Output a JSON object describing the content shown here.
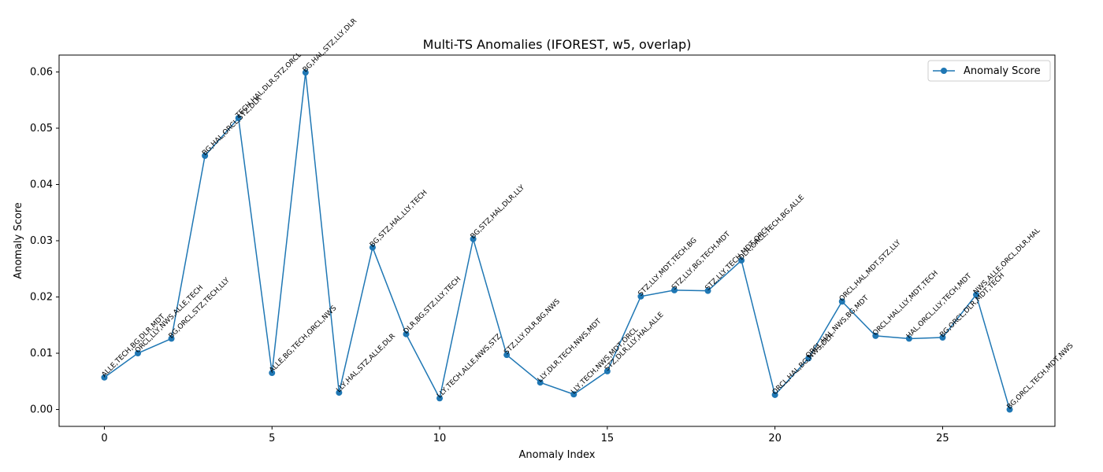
{
  "chart_data": {
    "type": "line",
    "title": "Multi-TS Anomalies (IFOREST, w5, overlap)",
    "xlabel": "Anomaly Index",
    "ylabel": "Anomaly Score",
    "xlim": [
      -1.35,
      28.35
    ],
    "ylim": [
      -0.003,
      0.063
    ],
    "xticks": [
      0,
      5,
      10,
      15,
      20,
      25
    ],
    "yticks": [
      0.0,
      0.01,
      0.02,
      0.03,
      0.04,
      0.05,
      0.06
    ],
    "ytick_labels": [
      "0.00",
      "0.01",
      "0.02",
      "0.03",
      "0.04",
      "0.05",
      "0.06"
    ],
    "grid": false,
    "legend_position": "top-right",
    "series": [
      {
        "name": "Anomaly Score",
        "color": "#1f77b4",
        "marker": "circle",
        "x": [
          0,
          1,
          2,
          3,
          4,
          5,
          6,
          7,
          8,
          9,
          10,
          11,
          12,
          13,
          14,
          15,
          16,
          17,
          18,
          19,
          20,
          21,
          22,
          23,
          24,
          25,
          26,
          27
        ],
        "values": [
          0.0057,
          0.01,
          0.0126,
          0.0451,
          0.0518,
          0.0065,
          0.0599,
          0.003,
          0.0288,
          0.0134,
          0.002,
          0.0303,
          0.0097,
          0.0048,
          0.0027,
          0.0068,
          0.0201,
          0.0212,
          0.0211,
          0.0265,
          0.0026,
          0.0091,
          0.0192,
          0.0131,
          0.0126,
          0.0128,
          0.0204,
          0.0
        ]
      }
    ],
    "point_labels": [
      "ALLE,TECH,BG,DLR,MDT",
      "ORCL,LLY,NWS,ALLE,TECH",
      "BG,ORCL,STZ,TECH,LLY",
      "BG,HAL,ORCL,STZ,DLR",
      "TECH,HAL,DLR,STZ,ORCL",
      "ALLE,BG,TECH,ORCL,NWS",
      "BG,HAL,STZ,LLY,DLR",
      "LLY,HAL,STZ,ALLE,DLR",
      "BG,STZ,HAL,LLY,TECH",
      "DLR,BG,STZ,LLY,TECH",
      "LLY,TECH,ALLE,NWS,STZ",
      "BG,STZ,HAL,DLR,LLY",
      "STZ,LLY,DLR,BG,NWS",
      "LLY,DLR,TECH,NWS,MDT",
      "LLY,TECH,NWS,MDT,ORCL",
      "STZ,DLR,LLY,HAL,ALLE",
      "STZ,LLY,MDT,TECH,BG",
      "STZ,LLY,BG,TECH,MDT",
      "STZ,LLY,TECH,MDT,ORCL",
      "DLR,ORCL,TECH,BG,ALLE",
      "ORCL,HAL,BG,NWS,DLR",
      "ORCL,HAL,NWS,BG,MDT",
      "ORCL,HAL,MDT,STZ,LLY",
      "ORCL,HAL,LLY,MDT,TECH",
      "HAL,ORCL,LLY,TECH,MDT",
      "BG,ORCL,DLR,MDT,TECH",
      "NWS,ALLE,ORCL,DLR,HAL",
      "BG,ORCL,TECH,MDT,NWS"
    ]
  }
}
